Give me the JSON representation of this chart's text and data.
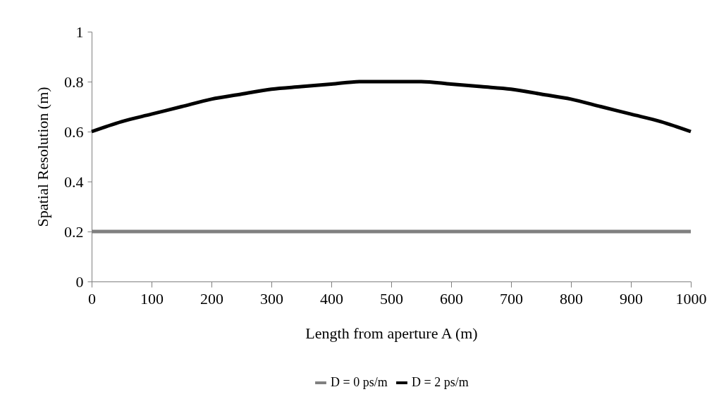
{
  "chart_data": {
    "type": "line",
    "xlabel": "Length from aperture A (m)",
    "ylabel": "Spatial Resolution (m)",
    "x": [
      0,
      50,
      100,
      150,
      200,
      250,
      300,
      350,
      400,
      450,
      500,
      550,
      600,
      650,
      700,
      750,
      800,
      850,
      900,
      950,
      1000
    ],
    "series": [
      {
        "name": "D = 0 ps/m",
        "color": "#808080",
        "values": [
          0.2,
          0.2,
          0.2,
          0.2,
          0.2,
          0.2,
          0.2,
          0.2,
          0.2,
          0.2,
          0.2,
          0.2,
          0.2,
          0.2,
          0.2,
          0.2,
          0.2,
          0.2,
          0.2,
          0.2,
          0.2
        ]
      },
      {
        "name": "D = 2 ps/m",
        "color": "#000000",
        "values": [
          0.6,
          0.64,
          0.67,
          0.7,
          0.73,
          0.75,
          0.77,
          0.78,
          0.79,
          0.8,
          0.8,
          0.8,
          0.79,
          0.78,
          0.77,
          0.75,
          0.73,
          0.7,
          0.67,
          0.64,
          0.6
        ]
      }
    ],
    "xlim": [
      0,
      1000
    ],
    "xticks": [
      0,
      100,
      200,
      300,
      400,
      500,
      600,
      700,
      800,
      900,
      1000
    ],
    "ylim": [
      0,
      1
    ],
    "yticks": [
      0,
      0.2,
      0.4,
      0.6,
      0.8,
      1
    ],
    "grid": false,
    "legend": "bottom",
    "marker": "none"
  }
}
